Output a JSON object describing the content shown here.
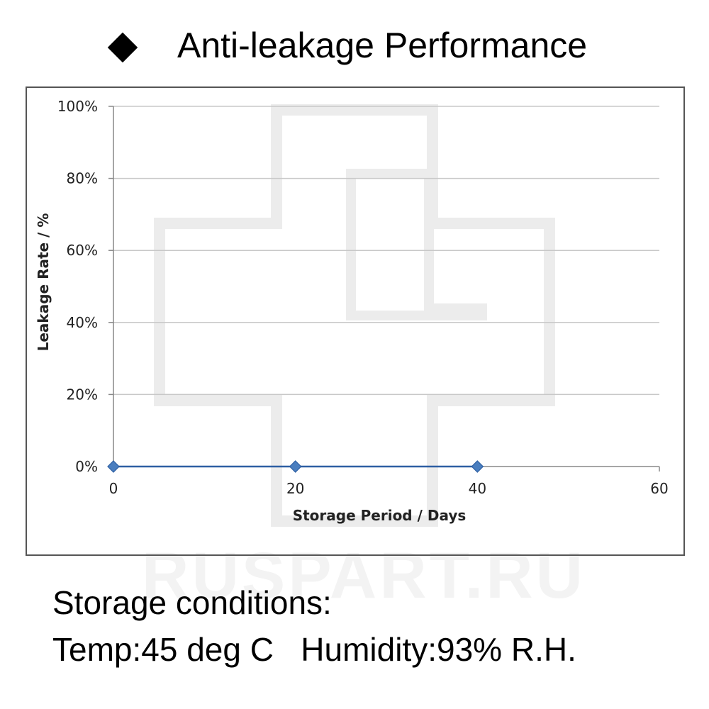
{
  "header": {
    "bullet_icon": "diamond-bullet-icon",
    "title": "Anti-leakage Performance"
  },
  "watermark": {
    "text": "RUSPART.RU",
    "color": "#f3f3f3"
  },
  "chart_data": {
    "type": "line",
    "title": "",
    "xlabel": "Storage Period / Days",
    "ylabel": "Leakage Rate / %",
    "xlim": [
      0,
      60
    ],
    "ylim": [
      0,
      100
    ],
    "x_ticks": [
      0,
      20,
      40,
      60
    ],
    "y_ticks": [
      0,
      20,
      40,
      60,
      80,
      100
    ],
    "y_tick_labels": [
      "0%",
      "20%",
      "40%",
      "60%",
      "80%",
      "100%"
    ],
    "grid": true,
    "legend": "none",
    "series": [
      {
        "x": [
          0,
          20,
          40
        ],
        "y": [
          0,
          0,
          0
        ],
        "color": "#2e5fa3",
        "marker": "diamond",
        "marker_color": "#4a7ebf"
      }
    ]
  },
  "conditions": {
    "line1": "Storage conditions:",
    "line2": "Temp:45 deg C   Humidity:93% R.H."
  }
}
